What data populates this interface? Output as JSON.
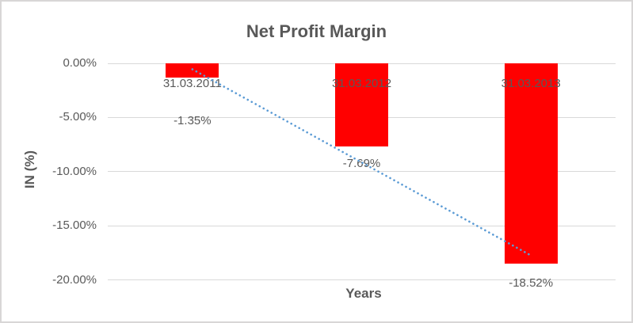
{
  "chart_data": {
    "type": "bar",
    "title": "Net Profit Margin",
    "xlabel": "Years",
    "ylabel": "IN (%)",
    "categories": [
      "31.03.2011",
      "31.03.2012",
      "31.03.2013"
    ],
    "values": [
      -1.35,
      -7.69,
      -18.52
    ],
    "data_labels": [
      "-1.35%",
      "-7.69%",
      "-18.52%"
    ],
    "y_ticks": [
      "0.00%",
      "-5.00%",
      "-10.00%",
      "-15.00%",
      "-20.00%"
    ],
    "y_tick_values": [
      0,
      -5,
      -10,
      -15,
      -20
    ],
    "ylim": [
      -20,
      0
    ],
    "grid": true,
    "legend": "none",
    "bar_color": "#FF0000",
    "text_color": "#595959",
    "gridline_color": "#D9D9D9",
    "trendline": {
      "style": "dotted",
      "color": "#5B9BD5",
      "start_value": -0.55,
      "end_value": -17.75,
      "start_category_index": 0,
      "end_category_index": 2
    }
  }
}
